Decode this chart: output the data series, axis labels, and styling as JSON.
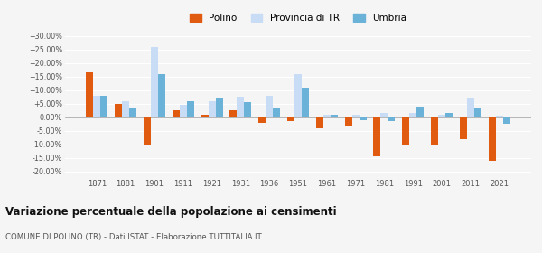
{
  "years": [
    1871,
    1881,
    1901,
    1911,
    1921,
    1931,
    1936,
    1951,
    1961,
    1971,
    1981,
    1991,
    2001,
    2011,
    2021
  ],
  "polino": [
    16.5,
    5.0,
    -10.0,
    2.5,
    1.0,
    2.5,
    -2.0,
    -1.5,
    -4.0,
    -3.5,
    -14.5,
    -10.0,
    -10.5,
    -8.0,
    -16.0
  ],
  "provincia_tr": [
    8.0,
    6.0,
    26.0,
    4.5,
    6.0,
    7.5,
    8.0,
    16.0,
    1.0,
    1.0,
    1.5,
    1.5,
    1.0,
    7.0,
    0.5
  ],
  "umbria": [
    8.0,
    3.5,
    16.0,
    6.0,
    7.0,
    5.5,
    3.5,
    11.0,
    1.0,
    -1.0,
    -1.5,
    4.0,
    1.5,
    3.5,
    -2.5
  ],
  "color_polino": "#e05a10",
  "color_provincia": "#c8ddf5",
  "color_umbria": "#6ab2d8",
  "bg_color": "#f5f5f5",
  "title": "Variazione percentuale della popolazione ai censimenti",
  "subtitle": "COMUNE DI POLINO (TR) - Dati ISTAT - Elaborazione TUTTITALIA.IT",
  "yticks": [
    -20,
    -15,
    -10,
    -5,
    0,
    5,
    10,
    15,
    20,
    25,
    30
  ],
  "ytick_labels": [
    "-20.00%",
    "-15.00%",
    "-10.00%",
    "-5.00%",
    "0.00%",
    "+5.00%",
    "+10.00%",
    "+15.00%",
    "+20.00%",
    "+25.00%",
    "+30.00%"
  ],
  "ylim": [
    -22,
    32
  ],
  "legend_labels": [
    "Polino",
    "Provincia di TR",
    "Umbria"
  ]
}
